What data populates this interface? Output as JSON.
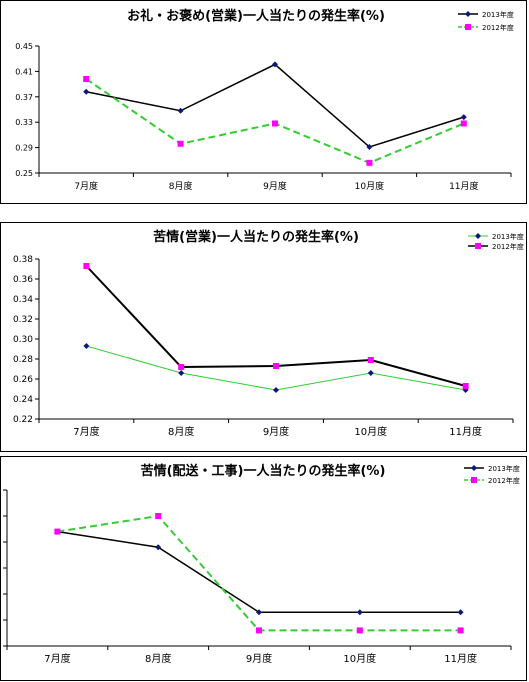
{
  "chart_data": [
    {
      "type": "line",
      "title": "お礼・お褒め(営業)一人当たりの発生率(%)",
      "categories": [
        "7月度",
        "8月度",
        "9月度",
        "10月度",
        "11月度"
      ],
      "ylim": [
        0.25,
        0.45
      ],
      "yticks": [
        "0.25",
        "0.29",
        "0.33",
        "0.37",
        "0.41",
        "0.45"
      ],
      "grid": false,
      "legend": "top-right",
      "series": [
        {
          "name": "2013年度",
          "color": "#000000",
          "marker": "diamond",
          "color_marker": "#0b1a7a",
          "dash": false,
          "width": 1.5,
          "values": [
            0.378,
            0.348,
            0.421,
            0.291,
            0.338
          ]
        },
        {
          "name": "2012年度",
          "color": "#33cc33",
          "marker": "square",
          "color_marker": "#ff00ff",
          "dash": true,
          "width": 2,
          "values": [
            0.398,
            0.296,
            0.328,
            0.266,
            0.328
          ]
        }
      ]
    },
    {
      "type": "line",
      "title": "苦情(営業)一人当たりの発生率(%)",
      "categories": [
        "7月度",
        "8月度",
        "9月度",
        "10月度",
        "11月度"
      ],
      "ylim": [
        0.22,
        0.38
      ],
      "yticks": [
        "0.22",
        "0.24",
        "0.26",
        "0.28",
        "0.30",
        "0.32",
        "0.34",
        "0.36",
        "0.38"
      ],
      "grid": false,
      "legend": "top-right",
      "series": [
        {
          "name": "2013年度",
          "color": "#33cc33",
          "marker": "diamond",
          "color_marker": "#0b1a7a",
          "dash": false,
          "width": 1,
          "values": [
            0.293,
            0.266,
            0.249,
            0.266,
            0.249
          ]
        },
        {
          "name": "2012年度",
          "color": "#000000",
          "marker": "square",
          "color_marker": "#ff00ff",
          "dash": false,
          "width": 2,
          "values": [
            0.373,
            0.272,
            0.273,
            0.279,
            0.253
          ]
        }
      ]
    },
    {
      "type": "line",
      "title": "苦情(配送・工事)一人当たりの発生率(%)",
      "categories": [
        "7月度",
        "8月度",
        "9月度",
        "10月度",
        "11月度"
      ],
      "ylim": [
        0,
        0.06
      ],
      "yticks": [
        "0",
        "0.01",
        "0.02",
        "0.03",
        "0.04",
        "0.05",
        "0.06"
      ],
      "grid": false,
      "legend": "top-right",
      "series": [
        {
          "name": "2013年度",
          "color": "#000000",
          "marker": "diamond",
          "color_marker": "#0b1a7a",
          "dash": false,
          "width": 1.5,
          "values": [
            0.044,
            0.038,
            0.013,
            0.013,
            0.013
          ]
        },
        {
          "name": "2012年度",
          "color": "#33cc33",
          "marker": "square",
          "color_marker": "#ff00ff",
          "dash": true,
          "width": 2,
          "values": [
            0.044,
            0.05,
            0.006,
            0.006,
            0.006
          ]
        }
      ]
    }
  ]
}
